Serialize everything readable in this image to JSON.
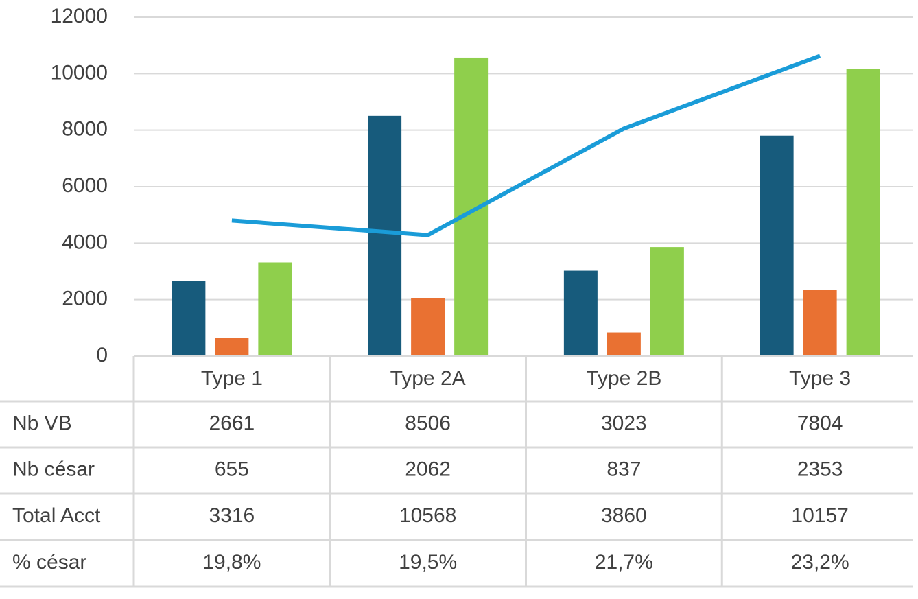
{
  "chart_data": {
    "type": "bar",
    "categories": [
      "Type 1",
      "Type 2A",
      "Type 2B",
      "Type 3"
    ],
    "series": [
      {
        "name": "Nb VB",
        "color": "#175b7c",
        "values": [
          2661,
          8506,
          3023,
          7804
        ]
      },
      {
        "name": "Nb césar",
        "color": "#e97132",
        "values": [
          655,
          2062,
          837,
          2353
        ]
      },
      {
        "name": "Total Acct",
        "color": "#8fcf4c",
        "values": [
          3316,
          10568,
          3860,
          10157
        ]
      },
      {
        "name": "% césar",
        "type": "line",
        "axis": "y2",
        "color": "#1a9cd8",
        "values": [
          19.8,
          19.5,
          21.7,
          23.2
        ],
        "value_labels": [
          "19,8%",
          "19,5%",
          "21,7%",
          "23,2%"
        ]
      }
    ],
    "ylim": [
      0,
      12000
    ],
    "yticks": [
      0,
      2000,
      4000,
      6000,
      8000,
      10000,
      12000
    ],
    "y2lim": [
      17,
      24
    ],
    "grid": true
  }
}
